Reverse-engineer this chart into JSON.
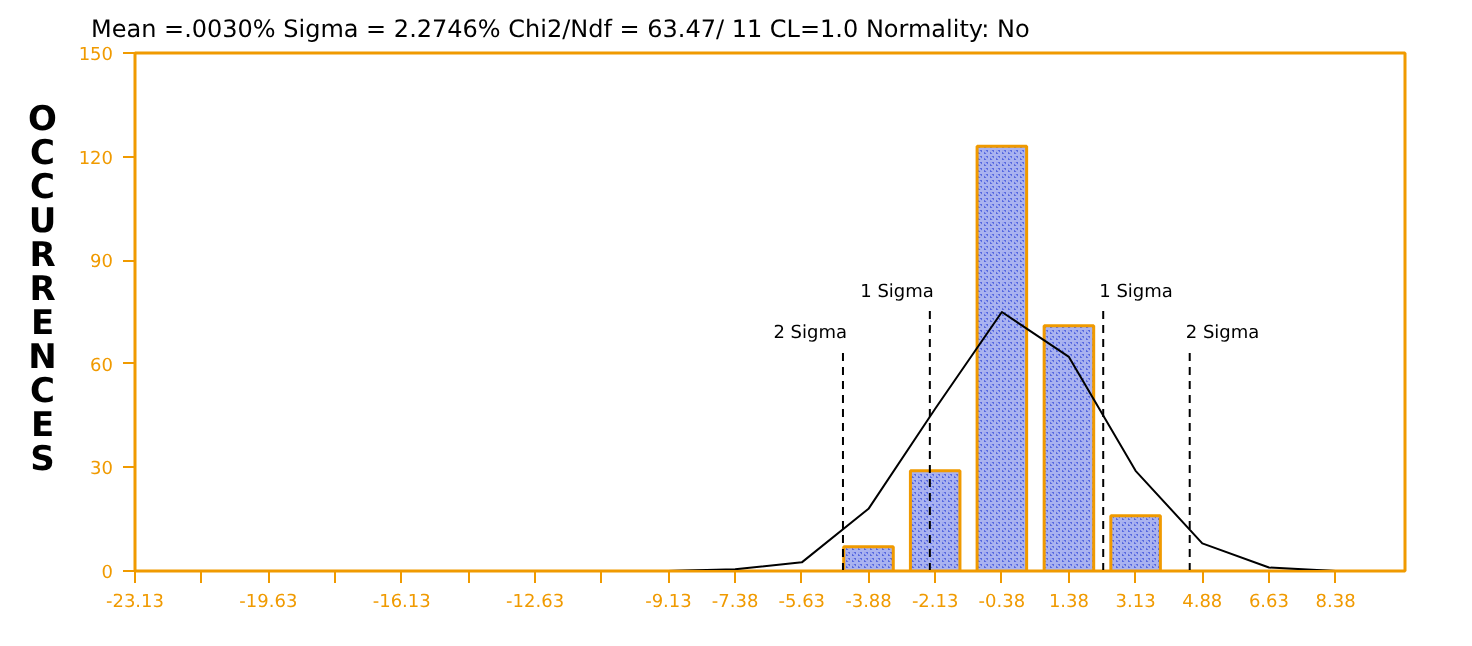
{
  "chart_data": {
    "type": "bar",
    "title": "Mean  =.0030%  Sigma = 2.2746%  Chi2/Ndf = 63.47/ 11   CL=1.0  Normality: No",
    "ylabel": "OCCURRENCES",
    "series": [
      {
        "color": "#5567e0",
        "x": [
          -3.88,
          -2.13,
          -0.38,
          1.38,
          3.13
        ],
        "values": [
          7,
          29,
          123,
          71,
          16
        ]
      },
      {
        "type": "line",
        "color": "#000000",
        "x": [
          -9.13,
          -7.38,
          -5.63,
          -3.88,
          -2.13,
          -0.38,
          1.38,
          3.13,
          4.88,
          6.63,
          8.38
        ],
        "values": [
          0,
          0.5,
          2.5,
          18,
          47,
          75,
          62,
          29,
          8,
          1,
          0
        ]
      }
    ],
    "xlim": [
      -23.13,
      10.2
    ],
    "xticks": [
      -23.13,
      {
        "value": -21.38,
        "label": null
      },
      -19.63,
      {
        "value": -17.88,
        "label": null
      },
      -16.13,
      {
        "value": -14.38,
        "label": null
      },
      -12.63,
      {
        "value": -10.88,
        "label": null
      },
      -9.13,
      -7.38,
      -5.63,
      -3.88,
      -2.13,
      -0.38,
      1.38,
      3.13,
      4.88,
      6.63,
      8.38
    ],
    "ylim": [
      0,
      150
    ],
    "yticks": [
      0,
      30,
      60,
      90,
      120,
      150
    ],
    "ref_lines": [
      {
        "axis": "x",
        "value": -4.55,
        "label": "2 Sigma",
        "color": "#000000",
        "line_style": "dashed"
      },
      {
        "axis": "x",
        "value": -2.27,
        "label": "1 Sigma",
        "color": "#000000",
        "line_style": "dashed"
      },
      {
        "axis": "x",
        "value": 2.28,
        "label": "1 Sigma",
        "color": "#000000",
        "line_style": "dashed"
      },
      {
        "axis": "x",
        "value": 4.55,
        "label": "2 Sigma",
        "color": "#000000",
        "line_style": "dashed"
      }
    ],
    "grid": false
  }
}
